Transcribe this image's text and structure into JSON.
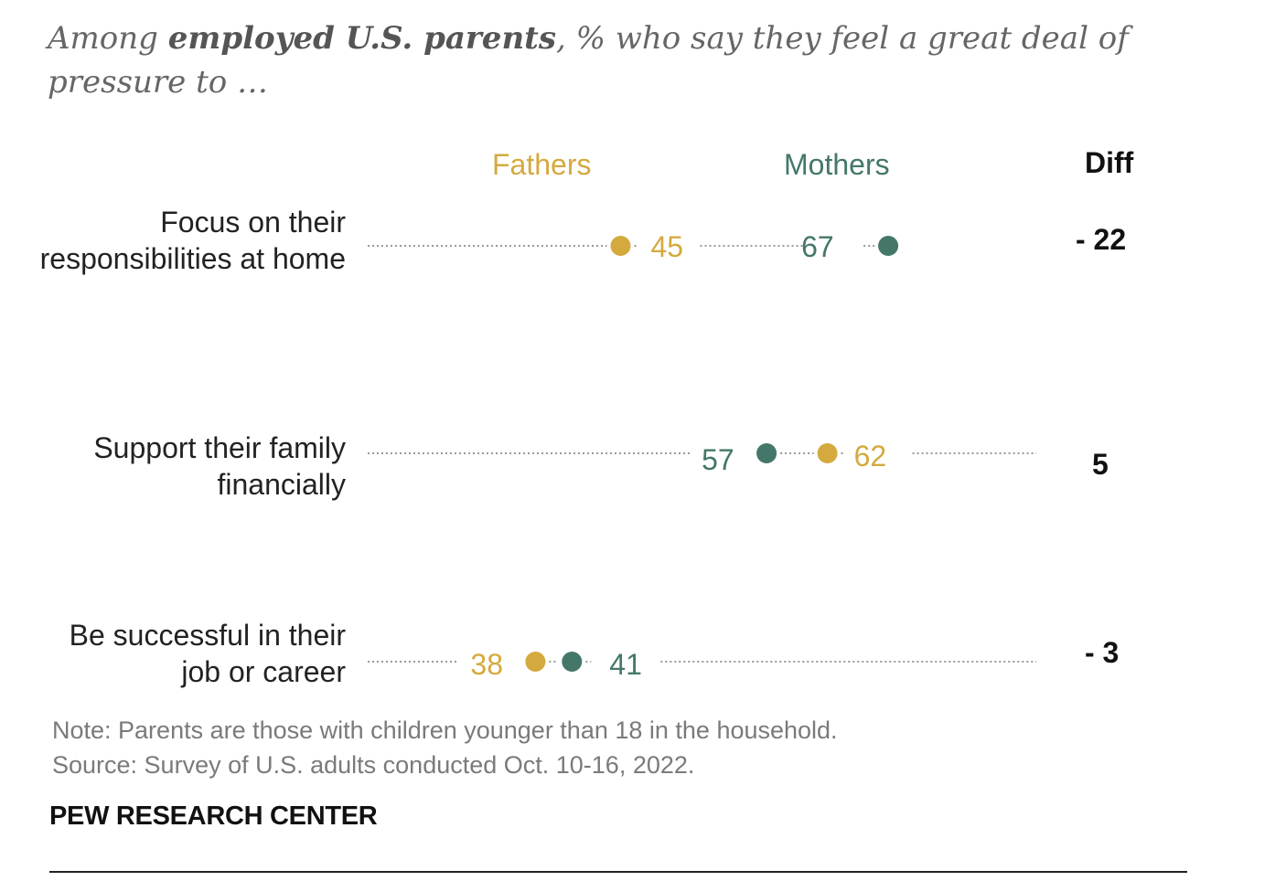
{
  "subtitle": {
    "prefix": "Among ",
    "bold": "employed U.S. parents",
    "suffix": ", % who say they feel a great deal of pressure to …"
  },
  "colors": {
    "fathers": "#d4aa3f",
    "mothers": "#44776a",
    "dots": "#9a9a9a"
  },
  "chart_data": {
    "type": "dot",
    "title": "Among employed U.S. parents, % who say they feel a great deal of pressure to …",
    "series": [
      {
        "name": "Fathers",
        "values": [
          45,
          62,
          38
        ]
      },
      {
        "name": "Mothers",
        "values": [
          67,
          57,
          41
        ]
      }
    ],
    "categories": [
      "Focus on their responsibilities at home",
      "Support their family financially",
      "Be successful in their job or career"
    ],
    "diff_header": "Diff",
    "diff": [
      "- 22",
      "5",
      "- 3"
    ],
    "xlim": [
      0,
      72
    ]
  },
  "note": "Note: Parents are those with children younger than 18 in the household.",
  "source": "Source: Survey of U.S. adults conducted Oct. 10-16, 2022.",
  "brand": "PEW RESEARCH CENTER"
}
